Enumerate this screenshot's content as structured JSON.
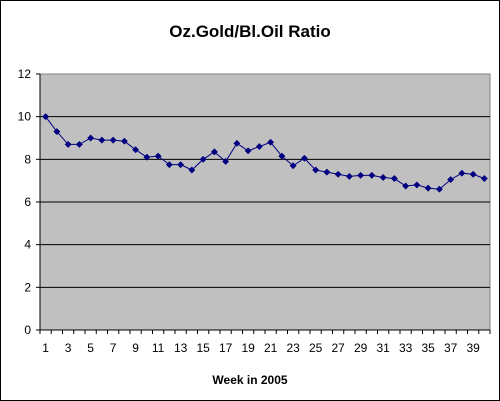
{
  "chart_data": {
    "type": "line",
    "title": "Oz.Gold/Bl.Oil Ratio",
    "xlabel": "Week in 2005",
    "ylabel": "",
    "x": [
      1,
      2,
      3,
      4,
      5,
      6,
      7,
      8,
      9,
      10,
      11,
      12,
      13,
      14,
      15,
      16,
      17,
      18,
      19,
      20,
      21,
      22,
      23,
      24,
      25,
      26,
      27,
      28,
      29,
      30,
      31,
      32,
      33,
      34,
      35,
      36,
      37,
      38,
      39,
      40
    ],
    "series": [
      {
        "values": [
          10.0,
          9.3,
          8.7,
          8.7,
          9.0,
          8.9,
          8.9,
          8.85,
          8.45,
          8.1,
          8.15,
          7.75,
          7.75,
          7.5,
          8.0,
          8.35,
          7.9,
          8.75,
          8.4,
          8.6,
          8.8,
          8.15,
          7.7,
          8.05,
          7.5,
          7.4,
          7.3,
          7.2,
          7.25,
          7.25,
          7.15,
          7.1,
          6.75,
          6.8,
          6.65,
          6.6,
          7.05,
          7.35,
          7.3,
          7.1
        ]
      }
    ],
    "ylim": [
      0,
      12
    ],
    "yticks": [
      0,
      2,
      4,
      6,
      8,
      10,
      12
    ],
    "xtick_labels": [
      "1",
      "3",
      "5",
      "7",
      "9",
      "11",
      "13",
      "15",
      "17",
      "19",
      "21",
      "23",
      "25",
      "27",
      "29",
      "31",
      "33",
      "35",
      "37",
      "39"
    ],
    "grid": true,
    "legend": "none",
    "colors": {
      "plot_background": "#c0c0c0",
      "line": "#000080",
      "marker": "#000080",
      "gridline": "#000000"
    }
  }
}
